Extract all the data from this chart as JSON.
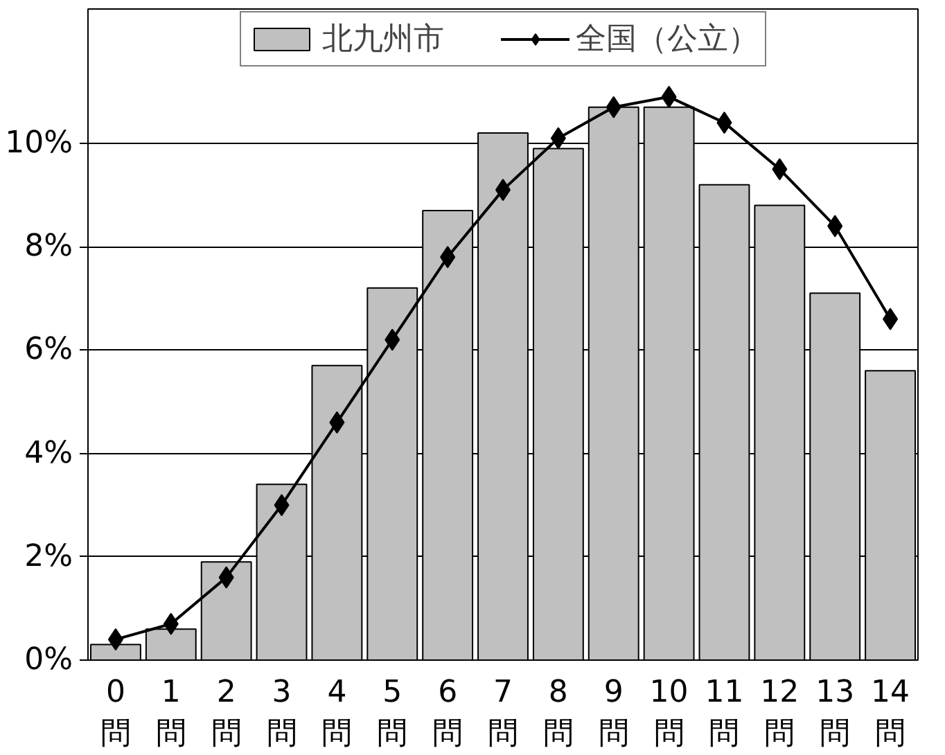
{
  "chart_data": {
    "type": "bar",
    "categories": [
      "0\n問",
      "1\n問",
      "2\n問",
      "3\n問",
      "4\n問",
      "5\n問",
      "6\n問",
      "7\n問",
      "8\n問",
      "9\n問",
      "10\n問",
      "11\n問",
      "12\n問",
      "13\n問",
      "14\n問"
    ],
    "series": [
      {
        "name": "北九州市",
        "color": "#c0c0c0",
        "values": [
          0.3,
          0.6,
          1.9,
          3.4,
          5.7,
          7.2,
          8.7,
          10.2,
          9.9,
          10.7,
          10.7,
          9.2,
          8.8,
          7.1,
          5.6
        ]
      },
      {
        "name": "全国（公立）",
        "type": "line",
        "color": "#000000",
        "marker": "diamond",
        "values": [
          0.4,
          0.7,
          1.6,
          3.0,
          4.6,
          6.2,
          7.8,
          9.1,
          10.1,
          10.7,
          10.9,
          10.4,
          9.5,
          8.4,
          6.6
        ]
      }
    ],
    "ylim": [
      0,
      12.6
    ],
    "yticks": [
      {
        "value": 0,
        "label": "0%"
      },
      {
        "value": 2,
        "label": "2%"
      },
      {
        "value": 4,
        "label": "4%"
      },
      {
        "value": 6,
        "label": "6%"
      },
      {
        "value": 8,
        "label": "8%"
      },
      {
        "value": 10,
        "label": "10%"
      }
    ],
    "grid": "y",
    "legend": "top"
  }
}
